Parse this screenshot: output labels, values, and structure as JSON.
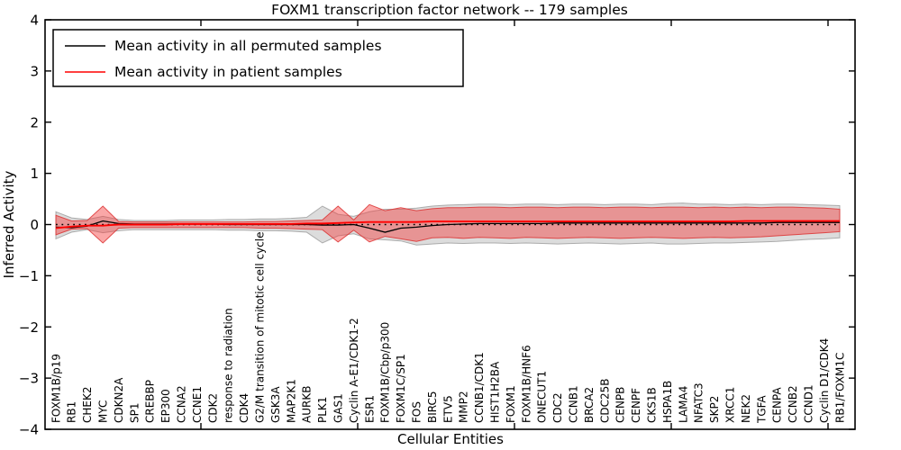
{
  "figure": {
    "title": "FOXM1 transcription factor network -- 179 samples",
    "xlabel": "Cellular Entities",
    "ylabel": "Inferred Activity",
    "legend": [
      {
        "label": "Mean activity in all permuted samples",
        "color": "#000000"
      },
      {
        "label": "Mean activity in patient samples",
        "color": "#ff0000"
      }
    ]
  },
  "chart_data": {
    "type": "line",
    "title": "FOXM1 transcription factor network -- 179 samples",
    "xlabel": "Cellular Entities",
    "ylabel": "Inferred Activity",
    "ylim": [
      -4,
      4
    ],
    "yticks": [
      4,
      3,
      2,
      1,
      0,
      -1,
      -2,
      -3,
      -4
    ],
    "grid": false,
    "legend_position": "upper left",
    "zero_reference_line": 0,
    "categories": [
      "FOXM1B/p19",
      "RB1",
      "CHEK2",
      "MYC",
      "CDKN2A",
      "SP1",
      "CREBBP",
      "EP300",
      "CCNA2",
      "CCNE1",
      "CDK2",
      "response to radiation",
      "CDK4",
      "G2/M transition of mitotic cell cycle",
      "GSK3A",
      "MAP2K1",
      "AURKB",
      "PLK1",
      "GAS1",
      "Cyclin A-E1/CDK1-2",
      "ESR1",
      "FOXM1B/Cbp/p300",
      "FOXM1C/SP1",
      "FOS",
      "BIRC5",
      "ETV5",
      "MMP2",
      "CCNB1/CDK1",
      "HIST1H2BA",
      "FOXM1",
      "FOXM1B/HNF6",
      "ONECUT1",
      "CDC2",
      "CCNB1",
      "BRCA2",
      "CDC25B",
      "CENPB",
      "CENPF",
      "CKS1B",
      "HSPA1B",
      "LAMA4",
      "NFATC3",
      "SKP2",
      "XRCC1",
      "NEK2",
      "TGFA",
      "CENPA",
      "CCNB2",
      "CCND1",
      "Cyclin D1/CDK4",
      "RB1/FOXM1C"
    ],
    "series": [
      {
        "name": "Mean activity in all permuted samples",
        "kind": "line",
        "color": "#000000",
        "values": [
          -0.05,
          -0.06,
          -0.03,
          0.07,
          0.02,
          0.01,
          0.01,
          0.01,
          0.01,
          0.01,
          0.01,
          0.0,
          0.0,
          0.0,
          0.0,
          0.0,
          0.0,
          -0.01,
          -0.01,
          0.0,
          -0.07,
          -0.15,
          -0.07,
          -0.05,
          -0.02,
          0.0,
          0.01,
          0.02,
          0.02,
          0.02,
          0.02,
          0.02,
          0.03,
          0.03,
          0.03,
          0.03,
          0.03,
          0.03,
          0.03,
          0.03,
          0.03,
          0.03,
          0.03,
          0.03,
          0.03,
          0.03,
          0.04,
          0.04,
          0.04,
          0.04,
          0.04
        ]
      },
      {
        "name": "Mean activity in patient samples",
        "kind": "line",
        "color": "#ff0000",
        "values": [
          -0.07,
          -0.04,
          -0.02,
          -0.02,
          0.0,
          0.0,
          0.0,
          0.0,
          0.01,
          0.01,
          0.01,
          0.01,
          0.01,
          0.01,
          0.01,
          0.01,
          0.02,
          0.02,
          0.03,
          0.04,
          0.05,
          0.05,
          0.05,
          0.05,
          0.06,
          0.06,
          0.06,
          0.06,
          0.06,
          0.06,
          0.06,
          0.06,
          0.06,
          0.06,
          0.06,
          0.06,
          0.06,
          0.06,
          0.06,
          0.06,
          0.06,
          0.06,
          0.06,
          0.06,
          0.07,
          0.07,
          0.07,
          0.07,
          0.07,
          0.07,
          0.07
        ]
      },
      {
        "name": "Permuted samples range",
        "kind": "band",
        "color": "#a8a8a8",
        "upper": [
          0.25,
          0.13,
          0.1,
          0.16,
          0.1,
          0.08,
          0.08,
          0.08,
          0.09,
          0.09,
          0.09,
          0.1,
          0.1,
          0.11,
          0.11,
          0.12,
          0.14,
          0.36,
          0.2,
          0.16,
          0.25,
          0.3,
          0.3,
          0.32,
          0.36,
          0.38,
          0.39,
          0.4,
          0.4,
          0.39,
          0.4,
          0.4,
          0.39,
          0.4,
          0.4,
          0.39,
          0.4,
          0.4,
          0.39,
          0.41,
          0.42,
          0.4,
          0.4,
          0.39,
          0.4,
          0.39,
          0.4,
          0.4,
          0.39,
          0.38,
          0.37
        ],
        "lower": [
          -0.28,
          -0.15,
          -0.1,
          -0.16,
          -0.12,
          -0.1,
          -0.1,
          -0.1,
          -0.1,
          -0.1,
          -0.1,
          -0.11,
          -0.11,
          -0.12,
          -0.12,
          -0.13,
          -0.15,
          -0.36,
          -0.22,
          -0.18,
          -0.28,
          -0.3,
          -0.32,
          -0.4,
          -0.38,
          -0.36,
          -0.37,
          -0.36,
          -0.36,
          -0.37,
          -0.36,
          -0.37,
          -0.38,
          -0.37,
          -0.36,
          -0.37,
          -0.38,
          -0.37,
          -0.36,
          -0.38,
          -0.38,
          -0.37,
          -0.36,
          -0.36,
          -0.35,
          -0.34,
          -0.33,
          -0.31,
          -0.29,
          -0.28,
          -0.26
        ]
      },
      {
        "name": "Patient samples range",
        "kind": "band",
        "color": "#f03c3c",
        "upper": [
          0.18,
          0.07,
          0.08,
          0.36,
          0.06,
          0.05,
          0.05,
          0.05,
          0.05,
          0.05,
          0.05,
          0.05,
          0.05,
          0.06,
          0.06,
          0.07,
          0.08,
          0.09,
          0.36,
          0.09,
          0.39,
          0.27,
          0.33,
          0.27,
          0.31,
          0.33,
          0.33,
          0.34,
          0.34,
          0.33,
          0.34,
          0.34,
          0.33,
          0.34,
          0.34,
          0.33,
          0.34,
          0.34,
          0.33,
          0.34,
          0.34,
          0.33,
          0.34,
          0.33,
          0.34,
          0.33,
          0.34,
          0.34,
          0.33,
          0.32,
          0.3
        ],
        "lower": [
          -0.2,
          -0.09,
          -0.08,
          -0.36,
          -0.07,
          -0.06,
          -0.06,
          -0.06,
          -0.06,
          -0.06,
          -0.06,
          -0.06,
          -0.06,
          -0.07,
          -0.07,
          -0.08,
          -0.09,
          -0.1,
          -0.34,
          -0.11,
          -0.34,
          -0.23,
          -0.28,
          -0.33,
          -0.26,
          -0.25,
          -0.27,
          -0.25,
          -0.26,
          -0.27,
          -0.25,
          -0.26,
          -0.27,
          -0.26,
          -0.25,
          -0.26,
          -0.27,
          -0.26,
          -0.25,
          -0.26,
          -0.27,
          -0.26,
          -0.25,
          -0.26,
          -0.25,
          -0.24,
          -0.22,
          -0.2,
          -0.18,
          -0.16,
          -0.14
        ]
      }
    ]
  }
}
